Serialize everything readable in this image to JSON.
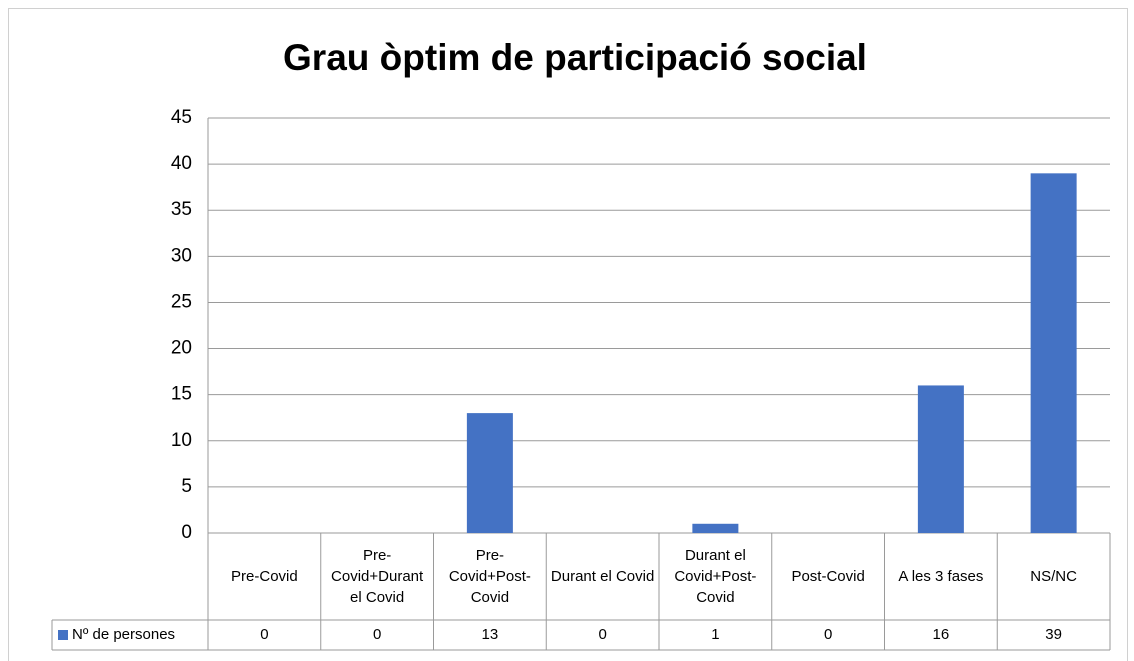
{
  "chart_data": {
    "type": "bar",
    "title": "Grau òptim de participació social",
    "categories": [
      "Pre-Covid",
      "Pre-Covid+Durant el Covid",
      "Pre-Covid+Post-Covid",
      "Durant el Covid",
      "Durant el Covid+Post-Covid",
      "Post-Covid",
      "A les 3 fases",
      "NS/NC"
    ],
    "series": [
      {
        "name": "Nº de persones",
        "color": "#4472c4",
        "values": [
          0,
          0,
          13,
          0,
          1,
          0,
          16,
          39
        ]
      }
    ],
    "ylim": [
      0,
      45
    ],
    "yticks": [
      0,
      5,
      10,
      15,
      20,
      25,
      30,
      35,
      40,
      45
    ],
    "grid": true,
    "data_table": true
  }
}
